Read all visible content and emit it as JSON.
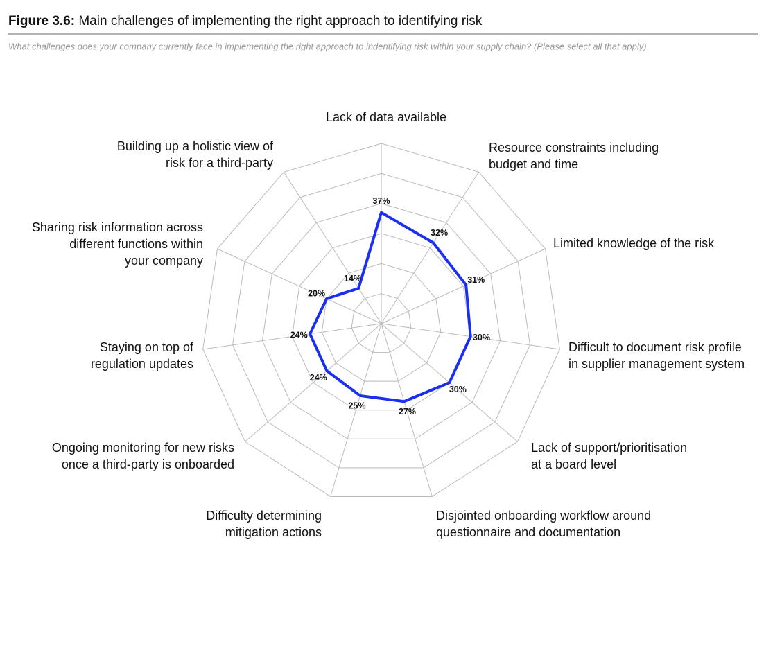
{
  "chart_data": {
    "type": "radar",
    "title_label": "Figure 3.6:",
    "title": "Main challenges of implementing the right approach to identifying risk",
    "subtitle": "What challenges does your company currently face in implementing the right approach to indentifying risk within your supply chain? (Please select all that apply)",
    "categories": [
      [
        "Lack of data available"
      ],
      [
        "Resource constraints including",
        "budget and time"
      ],
      [
        "Limited knowledge of the risk"
      ],
      [
        "Difficult to document risk profile",
        "in supplier management system"
      ],
      [
        "Lack of support/prioritisation",
        "at a board level"
      ],
      [
        "Disjointed onboarding workflow around",
        "questionnaire and documentation"
      ],
      [
        "Difficulty determining",
        "mitigation actions"
      ],
      [
        "Ongoing monitoring for new risks",
        "once a third-party is onboarded"
      ],
      [
        "Staying on top of",
        "regulation updates"
      ],
      [
        "Sharing risk information across",
        "different functions within",
        "your company"
      ],
      [
        "Building up a holistic view of",
        "risk for a third-party"
      ]
    ],
    "values": [
      37,
      32,
      31,
      30,
      30,
      27,
      25,
      24,
      24,
      20,
      14
    ],
    "value_labels": [
      "37%",
      "32%",
      "31%",
      "30%",
      "30%",
      "27%",
      "25%",
      "24%",
      "24%",
      "20%",
      "14%"
    ],
    "color": "#1a2ff0",
    "rlim": [
      0,
      60
    ],
    "rticks": [
      10,
      20,
      30,
      40,
      50,
      60
    ],
    "grid": true
  }
}
